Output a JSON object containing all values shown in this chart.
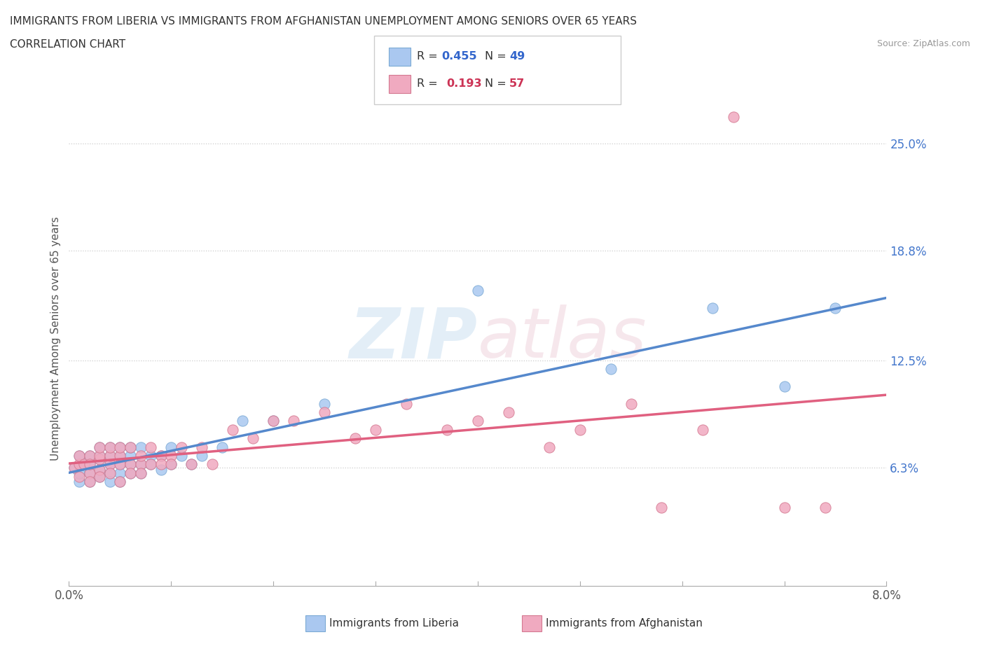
{
  "title_line1": "IMMIGRANTS FROM LIBERIA VS IMMIGRANTS FROM AFGHANISTAN UNEMPLOYMENT AMONG SENIORS OVER 65 YEARS",
  "title_line2": "CORRELATION CHART",
  "source": "Source: ZipAtlas.com",
  "ylabel": "Unemployment Among Seniors over 65 years",
  "xlim": [
    0.0,
    0.08
  ],
  "ylim": [
    -0.005,
    0.28
  ],
  "ytick_labels": [
    "6.3%",
    "12.5%",
    "18.8%",
    "25.0%"
  ],
  "ytick_vals": [
    0.063,
    0.125,
    0.188,
    0.25
  ],
  "watermark_zip": "ZIP",
  "watermark_atlas": "atlas",
  "liberia_color": "#aac8f0",
  "liberia_edge": "#7baad4",
  "afghanistan_color": "#f0aac0",
  "afghanistan_edge": "#d47890",
  "trendline_liberia": "#5588cc",
  "trendline_afghanistan": "#e06080",
  "R_liberia": 0.455,
  "N_liberia": 49,
  "R_afghanistan": 0.193,
  "N_afghanistan": 57,
  "liberia_x": [
    0.0005,
    0.001,
    0.001,
    0.001,
    0.0015,
    0.002,
    0.002,
    0.002,
    0.002,
    0.003,
    0.003,
    0.003,
    0.003,
    0.003,
    0.004,
    0.004,
    0.004,
    0.004,
    0.004,
    0.005,
    0.005,
    0.005,
    0.005,
    0.005,
    0.006,
    0.006,
    0.006,
    0.006,
    0.007,
    0.007,
    0.007,
    0.008,
    0.008,
    0.009,
    0.009,
    0.01,
    0.01,
    0.011,
    0.012,
    0.013,
    0.015,
    0.017,
    0.02,
    0.025,
    0.04,
    0.053,
    0.063,
    0.07,
    0.075
  ],
  "liberia_y": [
    0.063,
    0.055,
    0.06,
    0.07,
    0.065,
    0.06,
    0.065,
    0.055,
    0.07,
    0.068,
    0.058,
    0.062,
    0.07,
    0.075,
    0.06,
    0.065,
    0.055,
    0.07,
    0.075,
    0.065,
    0.06,
    0.07,
    0.075,
    0.055,
    0.065,
    0.07,
    0.075,
    0.06,
    0.065,
    0.06,
    0.075,
    0.07,
    0.065,
    0.062,
    0.07,
    0.075,
    0.065,
    0.07,
    0.065,
    0.07,
    0.075,
    0.09,
    0.09,
    0.1,
    0.165,
    0.12,
    0.155,
    0.11,
    0.155
  ],
  "afghanistan_x": [
    0.0005,
    0.001,
    0.001,
    0.001,
    0.0015,
    0.002,
    0.002,
    0.002,
    0.002,
    0.003,
    0.003,
    0.003,
    0.003,
    0.003,
    0.004,
    0.004,
    0.004,
    0.004,
    0.005,
    0.005,
    0.005,
    0.005,
    0.006,
    0.006,
    0.006,
    0.007,
    0.007,
    0.007,
    0.008,
    0.008,
    0.009,
    0.009,
    0.01,
    0.01,
    0.011,
    0.012,
    0.013,
    0.014,
    0.016,
    0.018,
    0.02,
    0.022,
    0.025,
    0.028,
    0.03,
    0.033,
    0.037,
    0.04,
    0.043,
    0.047,
    0.05,
    0.055,
    0.058,
    0.062,
    0.065,
    0.07,
    0.074
  ],
  "afghanistan_y": [
    0.063,
    0.058,
    0.065,
    0.07,
    0.065,
    0.06,
    0.07,
    0.055,
    0.065,
    0.068,
    0.062,
    0.07,
    0.058,
    0.075,
    0.065,
    0.07,
    0.06,
    0.075,
    0.065,
    0.07,
    0.075,
    0.055,
    0.065,
    0.075,
    0.06,
    0.065,
    0.07,
    0.06,
    0.065,
    0.075,
    0.07,
    0.065,
    0.07,
    0.065,
    0.075,
    0.065,
    0.075,
    0.065,
    0.085,
    0.08,
    0.09,
    0.09,
    0.095,
    0.08,
    0.085,
    0.1,
    0.085,
    0.09,
    0.095,
    0.075,
    0.085,
    0.1,
    0.04,
    0.085,
    0.265,
    0.04,
    0.04
  ]
}
